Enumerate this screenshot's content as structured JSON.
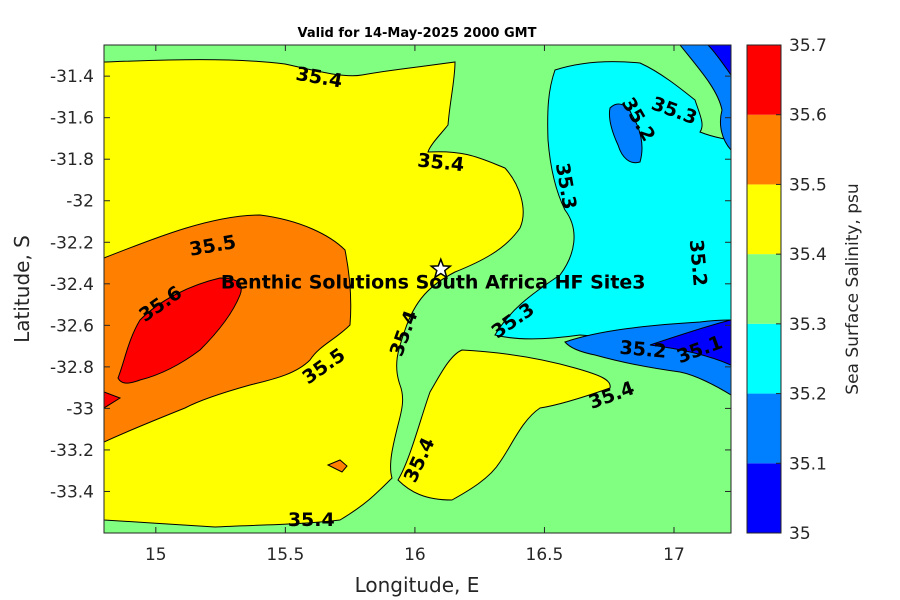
{
  "title": "Valid for 14-May-2025 2000 GMT",
  "xlabel": "Longitude, E",
  "ylabel": "Latitude, S",
  "colorbar_label": "Sea Surface Salinity, psu",
  "site_label": "Benthic Solutions South Africa HF Site3",
  "site_marker": {
    "lon": 16.1,
    "lat": -32.33,
    "icon": "star-icon"
  },
  "chart_data": {
    "type": "heatmap",
    "xlim": [
      14.8,
      17.22
    ],
    "ylim": [
      -33.6,
      -31.25
    ],
    "x_ticks": [
      15,
      15.5,
      16,
      16.5,
      17
    ],
    "x_tick_labels": [
      "15",
      "15.5",
      "16",
      "16.5",
      "17"
    ],
    "y_ticks": [
      -31.4,
      -31.6,
      -31.8,
      -32,
      -32.2,
      -32.4,
      -32.6,
      -32.8,
      -33,
      -33.2,
      -33.4
    ],
    "y_tick_labels": [
      "-31.4",
      "-31.6",
      "-31.8",
      "-32",
      "-32.2",
      "-32.4",
      "-32.6",
      "-32.8",
      "-33",
      "-33.2",
      "-33.4"
    ],
    "levels": [
      35,
      35.1,
      35.2,
      35.3,
      35.4,
      35.5,
      35.6,
      35.7
    ],
    "level_labels": [
      "35",
      "35.1",
      "35.2",
      "35.3",
      "35.4",
      "35.5",
      "35.6",
      "35.7"
    ],
    "band_colors": [
      "#0000ff",
      "#0080ff",
      "#00ffff",
      "#80ff80",
      "#ffff00",
      "#ff8000",
      "#ff0000"
    ],
    "contour_labels": [
      {
        "text": "35.4",
        "lon": 15.63,
        "lat": -31.41,
        "angle": 10
      },
      {
        "text": "35.3",
        "lon": 17.0,
        "lat": -31.57,
        "angle": 20
      },
      {
        "text": "35.2",
        "lon": 16.86,
        "lat": -31.61,
        "angle": 60
      },
      {
        "text": "35.4",
        "lon": 16.1,
        "lat": -31.82,
        "angle": 6
      },
      {
        "text": "35.3",
        "lon": 16.58,
        "lat": -31.93,
        "angle": 80
      },
      {
        "text": "35.5",
        "lon": 15.22,
        "lat": -32.22,
        "angle": -10
      },
      {
        "text": "35.2",
        "lon": 17.09,
        "lat": -32.3,
        "angle": 85
      },
      {
        "text": "35.6",
        "lon": 15.02,
        "lat": -32.5,
        "angle": -35
      },
      {
        "text": "35.4",
        "lon": 15.96,
        "lat": -32.64,
        "angle": -70
      },
      {
        "text": "35.3",
        "lon": 16.38,
        "lat": -32.58,
        "angle": -35
      },
      {
        "text": "35.2",
        "lon": 16.88,
        "lat": -32.72,
        "angle": 5
      },
      {
        "text": "35.1",
        "lon": 17.1,
        "lat": -32.72,
        "angle": -20
      },
      {
        "text": "35.5",
        "lon": 15.65,
        "lat": -32.8,
        "angle": -35
      },
      {
        "text": "35.4",
        "lon": 16.76,
        "lat": -32.94,
        "angle": -20
      },
      {
        "text": "35.4",
        "lon": 16.02,
        "lat": -33.25,
        "angle": -65
      },
      {
        "text": "35.4",
        "lon": 15.6,
        "lat": -33.54,
        "angle": 0
      }
    ]
  }
}
